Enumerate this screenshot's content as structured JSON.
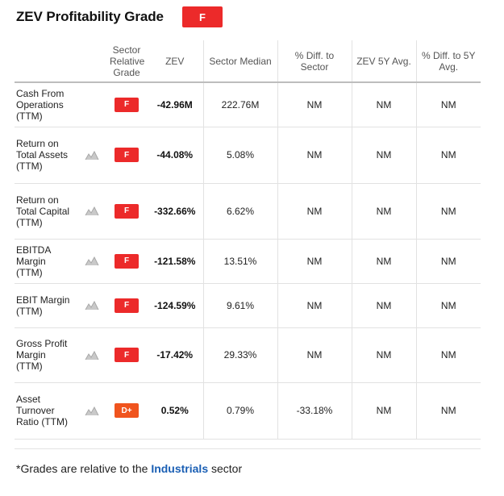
{
  "header": {
    "title": "ZEV Profitability Grade",
    "overall_grade": "F",
    "overall_grade_color": "#ec2a2a"
  },
  "table": {
    "columns": [
      {
        "key": "metric",
        "label": ""
      },
      {
        "key": "chart",
        "label": ""
      },
      {
        "key": "grade",
        "label": "Sector Relative Grade"
      },
      {
        "key": "zev",
        "label": "ZEV"
      },
      {
        "key": "sector_median",
        "label": "Sector Median"
      },
      {
        "key": "diff_sector",
        "label": "% Diff. to Sector"
      },
      {
        "key": "zev_5y",
        "label": "ZEV 5Y Avg."
      },
      {
        "key": "diff_5y",
        "label": "% Diff. to 5Y Avg."
      }
    ],
    "rows": [
      {
        "metric": "Cash From Operations (TTM)",
        "has_chart": false,
        "grade": "F",
        "grade_color": "#ec2a2a",
        "zev": "-42.96M",
        "sector_median": "222.76M",
        "diff_sector": "NM",
        "zev_5y": "NM",
        "diff_5y": "NM"
      },
      {
        "metric": "Return on Total Assets (TTM)",
        "has_chart": true,
        "grade": "F",
        "grade_color": "#ec2a2a",
        "zev": "-44.08%",
        "sector_median": "5.08%",
        "diff_sector": "NM",
        "zev_5y": "NM",
        "diff_5y": "NM"
      },
      {
        "metric": "Return on Total Capital (TTM)",
        "has_chart": true,
        "grade": "F",
        "grade_color": "#ec2a2a",
        "zev": "-332.66%",
        "sector_median": "6.62%",
        "diff_sector": "NM",
        "zev_5y": "NM",
        "diff_5y": "NM"
      },
      {
        "metric": "EBITDA Margin (TTM)",
        "has_chart": true,
        "grade": "F",
        "grade_color": "#ec2a2a",
        "zev": "-121.58%",
        "sector_median": "13.51%",
        "diff_sector": "NM",
        "zev_5y": "NM",
        "diff_5y": "NM"
      },
      {
        "metric": "EBIT Margin (TTM)",
        "has_chart": true,
        "grade": "F",
        "grade_color": "#ec2a2a",
        "zev": "-124.59%",
        "sector_median": "9.61%",
        "diff_sector": "NM",
        "zev_5y": "NM",
        "diff_5y": "NM"
      },
      {
        "metric": "Gross Profit Margin (TTM)",
        "has_chart": true,
        "grade": "F",
        "grade_color": "#ec2a2a",
        "zev": "-17.42%",
        "sector_median": "29.33%",
        "diff_sector": "NM",
        "zev_5y": "NM",
        "diff_5y": "NM"
      },
      {
        "metric": "Asset Turnover Ratio (TTM)",
        "has_chart": true,
        "grade": "D+",
        "grade_color": "#f0541e",
        "zev": "0.52%",
        "sector_median": "0.79%",
        "diff_sector": "-33.18%",
        "zev_5y": "NM",
        "diff_5y": "NM"
      }
    ]
  },
  "footnote": {
    "prefix": "*Grades are relative to the ",
    "link": "Industrials",
    "suffix": " sector"
  }
}
